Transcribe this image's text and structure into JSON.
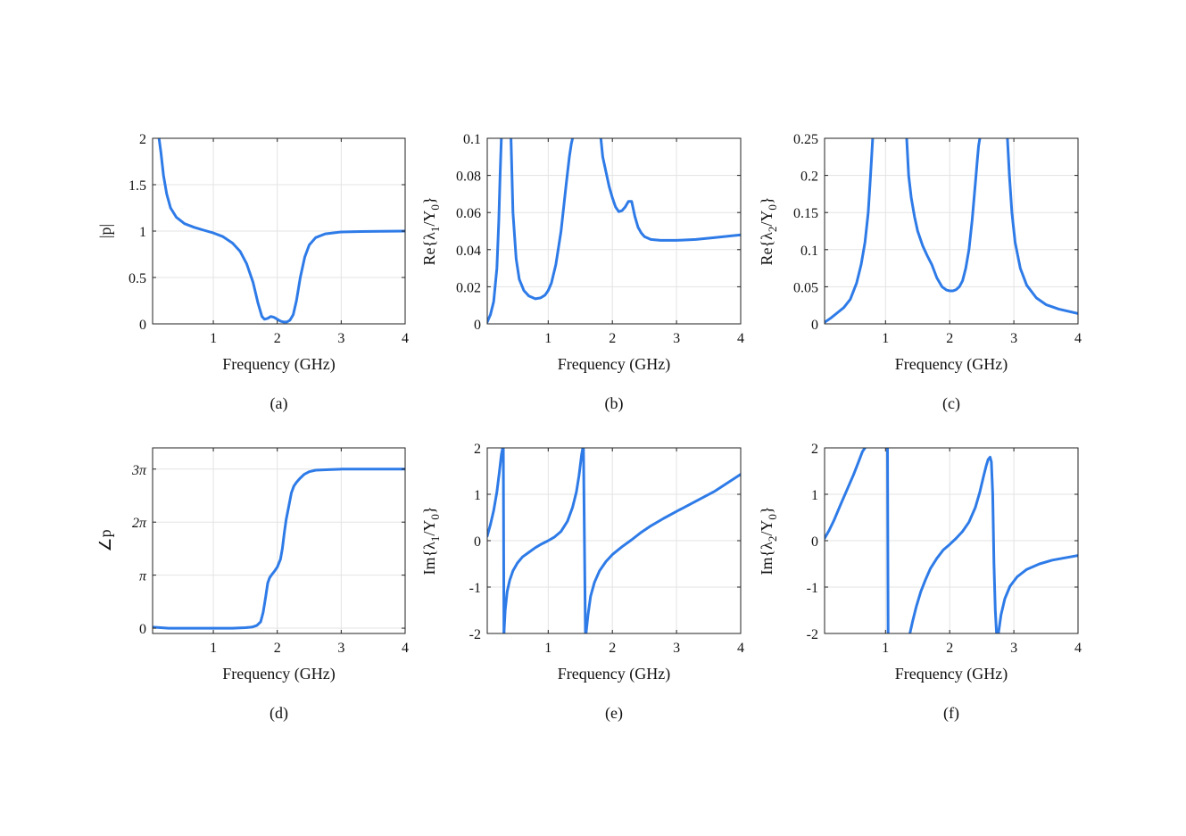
{
  "colors": {
    "series": "#2e7be8",
    "frame": "#222222",
    "grid": "#e3e3e3"
  },
  "chart_data": [
    {
      "type": "line",
      "caption": "(a)",
      "xlabel": "Frequency (GHz)",
      "ylabel": "|p|",
      "xlim": [
        0.05,
        4
      ],
      "ylim": [
        0,
        2
      ],
      "xticks": [
        1,
        2,
        3,
        4
      ],
      "xtick_labels": [
        "1",
        "2",
        "3",
        "4"
      ],
      "yticks": [
        0,
        0.5,
        1,
        1.5,
        2
      ],
      "ytick_labels": [
        "0",
        "0.5",
        "1",
        "1.5",
        "2"
      ],
      "grid": true,
      "series": [
        {
          "x": [
            0.15,
            0.18,
            0.22,
            0.27,
            0.33,
            0.42,
            0.55,
            0.7,
            0.85,
            1.0,
            1.15,
            1.3,
            1.42,
            1.52,
            1.62,
            1.7,
            1.76,
            1.8,
            1.85,
            1.9,
            1.95,
            2.0,
            2.05,
            2.1,
            2.15,
            2.2,
            2.25,
            2.3,
            2.36,
            2.43,
            2.5,
            2.6,
            2.75,
            3.0,
            3.3,
            3.6,
            4.0
          ],
          "y": [
            2.0,
            1.85,
            1.6,
            1.4,
            1.25,
            1.15,
            1.08,
            1.04,
            1.01,
            0.98,
            0.94,
            0.87,
            0.78,
            0.65,
            0.45,
            0.22,
            0.08,
            0.05,
            0.06,
            0.08,
            0.07,
            0.05,
            0.03,
            0.02,
            0.02,
            0.04,
            0.1,
            0.25,
            0.5,
            0.72,
            0.85,
            0.93,
            0.97,
            0.99,
            0.995,
            0.998,
            1.0
          ]
        }
      ]
    },
    {
      "type": "line",
      "caption": "(b)",
      "xlabel": "Frequency (GHz)",
      "ylabel": "Re{λ1/Y0}",
      "xlim": [
        0.05,
        4
      ],
      "ylim": [
        0,
        0.1
      ],
      "xticks": [
        1,
        2,
        3,
        4
      ],
      "xtick_labels": [
        "1",
        "2",
        "3",
        "4"
      ],
      "yticks": [
        0,
        0.02,
        0.04,
        0.06,
        0.08,
        0.1
      ],
      "ytick_labels": [
        "0",
        "0.02",
        "0.04",
        "0.06",
        "0.08",
        "0.1"
      ],
      "grid": true,
      "series": [
        {
          "x": [
            0.05,
            0.1,
            0.15,
            0.2,
            0.23,
            0.25,
            0.27
          ],
          "y": [
            0.001,
            0.005,
            0.012,
            0.03,
            0.055,
            0.08,
            0.1
          ]
        },
        {
          "x": [
            0.42,
            0.45,
            0.5,
            0.55,
            0.62,
            0.7,
            0.8,
            0.88,
            0.95,
            1.0,
            1.05,
            1.12,
            1.2,
            1.28,
            1.33,
            1.36,
            1.38
          ],
          "y": [
            0.1,
            0.06,
            0.035,
            0.024,
            0.018,
            0.015,
            0.0135,
            0.014,
            0.0155,
            0.018,
            0.022,
            0.032,
            0.05,
            0.075,
            0.09,
            0.097,
            0.1
          ]
        },
        {
          "x": [
            1.82,
            1.85,
            1.9,
            1.95,
            2.0,
            2.05,
            2.1,
            2.15,
            2.2,
            2.25,
            2.3,
            2.35,
            2.4,
            2.45,
            2.5,
            2.6,
            2.75,
            3.0,
            3.3,
            3.6,
            4.0
          ],
          "y": [
            0.1,
            0.09,
            0.082,
            0.074,
            0.068,
            0.063,
            0.0605,
            0.061,
            0.063,
            0.066,
            0.066,
            0.058,
            0.052,
            0.049,
            0.047,
            0.0455,
            0.045,
            0.045,
            0.0455,
            0.0465,
            0.048
          ]
        }
      ]
    },
    {
      "type": "line",
      "caption": "(c)",
      "xlabel": "Frequency (GHz)",
      "ylabel": "Re{λ2/Y0}",
      "xlim": [
        0.05,
        4
      ],
      "ylim": [
        0,
        0.25
      ],
      "xticks": [
        1,
        2,
        3,
        4
      ],
      "xtick_labels": [
        "1",
        "2",
        "3",
        "4"
      ],
      "yticks": [
        0,
        0.05,
        0.1,
        0.15,
        0.2,
        0.25
      ],
      "ytick_labels": [
        "0",
        "0.05",
        "0.1",
        "0.15",
        "0.2",
        "0.25"
      ],
      "grid": true,
      "series": [
        {
          "x": [
            0.05,
            0.15,
            0.25,
            0.35,
            0.45,
            0.55,
            0.62,
            0.68,
            0.73,
            0.76,
            0.78,
            0.8
          ],
          "y": [
            0.002,
            0.008,
            0.015,
            0.022,
            0.033,
            0.055,
            0.08,
            0.11,
            0.15,
            0.19,
            0.22,
            0.25
          ]
        },
        {
          "x": [
            1.33,
            1.36,
            1.4,
            1.45,
            1.5,
            1.58,
            1.65,
            1.72,
            1.8,
            1.88,
            1.95,
            2.0,
            2.05,
            2.1,
            2.15,
            2.2,
            2.25,
            2.3,
            2.35,
            2.4,
            2.43,
            2.45,
            2.47
          ],
          "y": [
            0.25,
            0.2,
            0.17,
            0.145,
            0.125,
            0.105,
            0.092,
            0.08,
            0.062,
            0.05,
            0.0455,
            0.0445,
            0.0445,
            0.046,
            0.05,
            0.058,
            0.075,
            0.1,
            0.14,
            0.19,
            0.22,
            0.24,
            0.25
          ]
        },
        {
          "x": [
            2.9,
            2.93,
            2.97,
            3.02,
            3.1,
            3.2,
            3.35,
            3.5,
            3.7,
            4.0
          ],
          "y": [
            0.25,
            0.2,
            0.15,
            0.11,
            0.075,
            0.052,
            0.035,
            0.026,
            0.02,
            0.014
          ]
        }
      ]
    },
    {
      "type": "line",
      "caption": "(d)",
      "xlabel": "Frequency (GHz)",
      "ylabel": "∠p",
      "xlim": [
        0.05,
        4
      ],
      "ylim": [
        -0.1,
        3.4
      ],
      "xticks": [
        1,
        2,
        3,
        4
      ],
      "xtick_labels": [
        "1",
        "2",
        "3",
        "4"
      ],
      "yticks": [
        0,
        1,
        2,
        3
      ],
      "ytick_labels": [
        "0",
        "π",
        "2π",
        "3π"
      ],
      "y_unit": "π rad",
      "grid": true,
      "series": [
        {
          "x": [
            0.05,
            0.3,
            0.6,
            1.0,
            1.3,
            1.5,
            1.6,
            1.68,
            1.74,
            1.78,
            1.82,
            1.85,
            1.88,
            1.92,
            1.96,
            2.0,
            2.05,
            2.08,
            2.11,
            2.14,
            2.18,
            2.22,
            2.26,
            2.3,
            2.35,
            2.42,
            2.5,
            2.6,
            2.8,
            3.0,
            3.5,
            4.0
          ],
          "y": [
            0.02,
            0.0,
            0.0,
            0.0,
            0.0,
            0.01,
            0.02,
            0.05,
            0.12,
            0.3,
            0.6,
            0.85,
            0.95,
            1.02,
            1.08,
            1.15,
            1.3,
            1.5,
            1.8,
            2.05,
            2.3,
            2.55,
            2.68,
            2.75,
            2.82,
            2.9,
            2.95,
            2.98,
            2.99,
            3.0,
            3.0,
            3.0
          ]
        }
      ]
    },
    {
      "type": "line",
      "caption": "(e)",
      "xlabel": "Frequency (GHz)",
      "ylabel": "Im{λ1/Y0}",
      "xlim": [
        0.05,
        4
      ],
      "ylim": [
        -2,
        2
      ],
      "xticks": [
        1,
        2,
        3,
        4
      ],
      "xtick_labels": [
        "1",
        "2",
        "3",
        "4"
      ],
      "yticks": [
        -2,
        -1,
        0,
        1,
        2
      ],
      "ytick_labels": [
        "-2",
        "-1",
        "0",
        "1",
        "2"
      ],
      "grid": true,
      "series": [
        {
          "x": [
            0.05,
            0.1,
            0.15,
            0.2,
            0.24,
            0.27,
            0.29,
            0.3
          ],
          "y": [
            0.1,
            0.35,
            0.65,
            1.05,
            1.5,
            1.85,
            2.0,
            2.0
          ]
        },
        {
          "x": [
            0.3,
            0.31
          ],
          "y": [
            2.0,
            -2.0
          ]
        },
        {
          "x": [
            0.31,
            0.33,
            0.36,
            0.4,
            0.45,
            0.52,
            0.6,
            0.7,
            0.8,
            0.9,
            1.0,
            1.1,
            1.2,
            1.3,
            1.38,
            1.44,
            1.48,
            1.52,
            1.54
          ],
          "y": [
            -2.0,
            -1.5,
            -1.1,
            -0.85,
            -0.65,
            -0.48,
            -0.35,
            -0.25,
            -0.15,
            -0.07,
            0.0,
            0.08,
            0.2,
            0.42,
            0.72,
            1.05,
            1.4,
            1.85,
            2.0
          ]
        },
        {
          "x": [
            1.55,
            1.58
          ],
          "y": [
            2.0,
            -2.0
          ]
        },
        {
          "x": [
            1.59,
            1.62,
            1.66,
            1.72,
            1.8,
            1.9,
            2.0,
            2.15,
            2.3,
            2.45,
            2.6,
            2.8,
            3.0,
            3.3,
            3.6,
            4.0
          ],
          "y": [
            -2.0,
            -1.6,
            -1.2,
            -0.9,
            -0.65,
            -0.45,
            -0.3,
            -0.13,
            0.02,
            0.18,
            0.32,
            0.48,
            0.63,
            0.85,
            1.07,
            1.43
          ]
        }
      ]
    },
    {
      "type": "line",
      "caption": "(f)",
      "xlabel": "Frequency (GHz)",
      "ylabel": "Im{λ2/Y0}",
      "xlim": [
        0.05,
        4
      ],
      "ylim": [
        -2,
        2
      ],
      "xticks": [
        1,
        2,
        3,
        4
      ],
      "xtick_labels": [
        "1",
        "2",
        "3",
        "4"
      ],
      "yticks": [
        -2,
        -1,
        0,
        1,
        2
      ],
      "ytick_labels": [
        "-2",
        "-1",
        "0",
        "1",
        "2"
      ],
      "grid": true,
      "series": [
        {
          "x": [
            0.05,
            0.12,
            0.2,
            0.3,
            0.4,
            0.5,
            0.58,
            0.64,
            0.68
          ],
          "y": [
            0.05,
            0.22,
            0.45,
            0.78,
            1.1,
            1.42,
            1.7,
            1.92,
            2.0
          ]
        },
        {
          "x": [
            1.03,
            1.04
          ],
          "y": [
            2.0,
            -2.0
          ]
        },
        {
          "x": [
            1.38,
            1.42,
            1.48,
            1.55,
            1.62,
            1.7,
            1.8,
            1.9,
            2.0,
            2.1,
            2.2,
            2.3,
            2.4,
            2.47,
            2.53,
            2.57,
            2.6,
            2.63,
            2.65,
            2.67,
            2.69,
            2.71,
            2.73
          ],
          "y": [
            -2.0,
            -1.75,
            -1.42,
            -1.1,
            -0.85,
            -0.6,
            -0.38,
            -0.2,
            -0.08,
            0.05,
            0.2,
            0.4,
            0.72,
            1.05,
            1.4,
            1.62,
            1.75,
            1.8,
            1.7,
            1.0,
            -0.5,
            -1.5,
            -2.0
          ]
        },
        {
          "x": [
            2.76,
            2.8,
            2.86,
            2.94,
            3.05,
            3.2,
            3.4,
            3.6,
            3.8,
            4.0
          ],
          "y": [
            -2.0,
            -1.6,
            -1.25,
            -0.98,
            -0.78,
            -0.62,
            -0.5,
            -0.42,
            -0.37,
            -0.32
          ]
        }
      ]
    }
  ]
}
